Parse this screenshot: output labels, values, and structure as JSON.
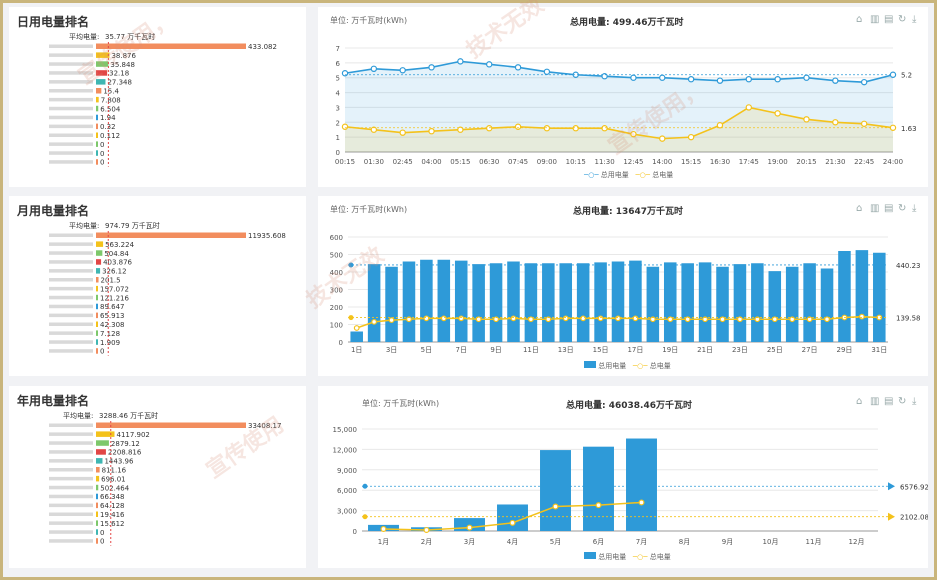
{
  "colors": {
    "blue": "#2e9ad8",
    "yellow": "#f4c21b",
    "orange": "#f28d5e",
    "red": "#e24646",
    "green": "#7ec86b",
    "teal": "#3fb6b2"
  },
  "toolbar_icons": [
    "line-chart-icon",
    "bar-chart-icon",
    "data-view-icon",
    "refresh-icon",
    "download-icon"
  ],
  "watermark": [
    "宣传使用，",
    "技术无效",
    "宣传使用，",
    "技术无效",
    "宣传使用"
  ],
  "panels": [
    {
      "rank": {
        "title": "日用电量排名",
        "avg_label": "平均电量:",
        "avg_value": "35.77 万千瓦时",
        "avg": 35.77,
        "max": 433.082,
        "values": [
          433.082,
          38.876,
          35.848,
          32.18,
          27.348,
          15.4,
          7.808,
          6.504,
          1.94,
          0.32,
          0.112,
          0,
          0,
          0
        ],
        "labels": [
          "433.082",
          "38.876",
          "35.848",
          "32.18",
          "27.348",
          "15.4",
          "7.808",
          "6.504",
          "1.94",
          "0.32",
          "0.112",
          "0",
          "0",
          "0"
        ],
        "bar_colors": [
          "#f28d5e",
          "#f4c21b",
          "#7ec86b",
          "#e24646",
          "#3fb6b2",
          "#f28d5e",
          "#f4c21b",
          "#7ec86b",
          "#2e9ad8",
          "#f28d5e",
          "#f4c21b",
          "#7ec86b",
          "#3fb6b2",
          "#f28d5e"
        ]
      },
      "chart_data": {
        "type": "line",
        "unit": "单位: 万千瓦时(kWh)",
        "total": "总用电量: 499.46万千瓦时",
        "x": [
          "00:15",
          "01:30",
          "02:45",
          "04:00",
          "05:15",
          "06:30",
          "07:45",
          "09:00",
          "10:15",
          "11:30",
          "12:45",
          "14:00",
          "15:15",
          "16:30",
          "17:45",
          "19:00",
          "20:15",
          "21:30",
          "22:45",
          "24:00"
        ],
        "ylim": [
          0,
          7
        ],
        "yticks": [
          0,
          1,
          2,
          3,
          4,
          5,
          6,
          7
        ],
        "series": [
          {
            "name": "总用电量",
            "values": [
              5.3,
              5.6,
              5.5,
              5.7,
              6.1,
              5.9,
              5.7,
              5.4,
              5.2,
              5.1,
              5.0,
              5.0,
              4.9,
              4.8,
              4.9,
              4.9,
              5.0,
              4.8,
              4.7,
              5.2
            ],
            "avg": 5.2,
            "end_label": "5.2"
          },
          {
            "name": "总电量",
            "values": [
              1.7,
              1.5,
              1.3,
              1.4,
              1.5,
              1.6,
              1.7,
              1.6,
              1.6,
              1.6,
              1.2,
              0.9,
              1.0,
              1.8,
              3.0,
              2.6,
              2.2,
              2.0,
              1.9,
              1.63
            ],
            "avg": 1.63,
            "end_label": "1.63"
          }
        ],
        "legend": [
          "总用电量",
          "总电量"
        ]
      }
    },
    {
      "rank": {
        "title": "月用电量排名",
        "avg_label": "平均电量:",
        "avg_value": "974.79 万千瓦时",
        "avg": 974.79,
        "max": 11935.608,
        "values": [
          11935.608,
          563.224,
          504.84,
          403.876,
          326.12,
          201.5,
          157.072,
          121.216,
          89.647,
          65.913,
          42.308,
          7.128,
          1.909,
          0
        ],
        "labels": [
          "11935.608",
          "563.224",
          "504.84",
          "403.876",
          "326.12",
          "201.5",
          "157.072",
          "121.216",
          "89.647",
          "65.913",
          "42.308",
          "7.128",
          "1.909",
          "0"
        ],
        "bar_colors": [
          "#f28d5e",
          "#f4c21b",
          "#7ec86b",
          "#e24646",
          "#3fb6b2",
          "#f28d5e",
          "#f4c21b",
          "#7ec86b",
          "#2e9ad8",
          "#f28d5e",
          "#f4c21b",
          "#7ec86b",
          "#3fb6b2",
          "#f28d5e"
        ]
      },
      "chart_data": {
        "type": "bar",
        "unit": "单位: 万千瓦时(kWh)",
        "total": "总用电量: 13647万千瓦时",
        "categories": [
          "1日",
          "2日",
          "3日",
          "4日",
          "5日",
          "6日",
          "7日",
          "8日",
          "9日",
          "10日",
          "11日",
          "12日",
          "13日",
          "14日",
          "15日",
          "16日",
          "17日",
          "18日",
          "19日",
          "20日",
          "21日",
          "22日",
          "23日",
          "24日",
          "25日",
          "26日",
          "27日",
          "28日",
          "29日",
          "30日",
          "31日"
        ],
        "xtick_labels": [
          "1日",
          "3日",
          "5日",
          "7日",
          "9日",
          "11日",
          "13日",
          "15日",
          "17日",
          "19日",
          "21日",
          "23日",
          "25日",
          "27日",
          "29日",
          "31日"
        ],
        "ylim": [
          0,
          600
        ],
        "yticks": [
          0,
          100,
          200,
          300,
          400,
          500,
          600
        ],
        "series": [
          {
            "name": "总用电量",
            "values": [
              60,
              445,
              430,
              460,
              470,
              470,
              465,
              445,
              450,
              460,
              450,
              450,
              450,
              450,
              455,
              460,
              465,
              430,
              455,
              450,
              455,
              430,
              445,
              450,
              405,
              430,
              450,
              420,
              520,
              525,
              510
            ],
            "avg": 440.23,
            "end_label": "440.23"
          },
          {
            "name": "总电量",
            "values": [
              80,
              115,
              125,
              130,
              135,
              135,
              135,
              130,
              130,
              135,
              130,
              130,
              135,
              135,
              135,
              135,
              135,
              130,
              130,
              130,
              130,
              130,
              130,
              130,
              130,
              130,
              130,
              130,
              140,
              145,
              140
            ],
            "avg": 139.58,
            "end_label": "139.58"
          }
        ],
        "legend": [
          "总用电量",
          "总电量"
        ]
      }
    },
    {
      "rank": {
        "title": "年用电量排名",
        "avg_label": "平均电量:",
        "avg_value": "3288.46 万千瓦时",
        "avg": 3288.46,
        "max": 33408.17,
        "values": [
          33408.17,
          4117.902,
          2879.12,
          2208.816,
          1443.96,
          811.16,
          696.01,
          502.464,
          66.348,
          64.128,
          19.416,
          15.612,
          0,
          0
        ],
        "labels": [
          "33408.17",
          "4117.902",
          "2879.12",
          "2208.816",
          "1443.96",
          "811.16",
          "696.01",
          "502.464",
          "66.348",
          "64.128",
          "19.416",
          "15.612",
          "0",
          "0"
        ],
        "bar_colors": [
          "#f28d5e",
          "#f4c21b",
          "#7ec86b",
          "#e24646",
          "#3fb6b2",
          "#f28d5e",
          "#f4c21b",
          "#7ec86b",
          "#2e9ad8",
          "#f28d5e",
          "#f4c21b",
          "#7ec86b",
          "#3fb6b2",
          "#f28d5e"
        ]
      },
      "chart_data": {
        "type": "bar",
        "unit": "单位: 万千瓦时(kWh)",
        "total": "总用电量: 46038.46万千瓦时",
        "categories": [
          "1月",
          "2月",
          "3月",
          "4月",
          "5月",
          "6月",
          "7月",
          "8月",
          "9月",
          "10月",
          "11月",
          "12月"
        ],
        "ylim": [
          0,
          15000
        ],
        "yticks": [
          0,
          3000,
          6000,
          9000,
          12000,
          15000
        ],
        "ytick_labels": [
          "0",
          "3,000",
          "6,000",
          "9,000",
          "12,000",
          "15,000"
        ],
        "series": [
          {
            "name": "总用电量",
            "values": [
              900,
              550,
              1900,
              3900,
              11900,
              12400,
              13600,
              null,
              null,
              null,
              null,
              null
            ],
            "avg": 6576.92,
            "end_label": "6576.92"
          },
          {
            "name": "总电量",
            "values": [
              300,
              150,
              500,
              1200,
              3600,
              3800,
              4200,
              null,
              null,
              null,
              null,
              null
            ],
            "avg": 2102.08,
            "end_label": "2102.08"
          }
        ],
        "legend": [
          "总用电量",
          "总电量"
        ]
      }
    }
  ]
}
